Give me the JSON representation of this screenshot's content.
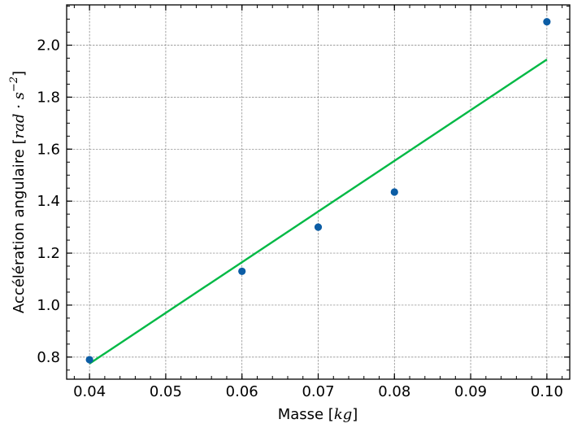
{
  "chart_data": {
    "type": "scatter",
    "xlabel_prefix": "Masse [",
    "xlabel_math": "kg",
    "xlabel_suffix": "]",
    "ylabel_prefix": "Accélération angulaire [",
    "ylabel_math": "rad · s",
    "ylabel_sup": "−2",
    "ylabel_suffix": "]",
    "xlim": [
      0.037,
      0.103
    ],
    "ylim": [
      0.715,
      2.155
    ],
    "xticks": [
      0.04,
      0.05,
      0.06,
      0.07,
      0.08,
      0.09,
      0.1
    ],
    "xtick_labels": [
      "0.04",
      "0.05",
      "0.06",
      "0.07",
      "0.08",
      "0.09",
      "0.10"
    ],
    "yticks": [
      0.8,
      1.0,
      1.2,
      1.4,
      1.6,
      1.8,
      2.0
    ],
    "ytick_labels": [
      "0.8",
      "1.0",
      "1.2",
      "1.4",
      "1.6",
      "1.8",
      "2.0"
    ],
    "grid": true,
    "series": [
      {
        "kind": "points",
        "color": "#0c5da5",
        "x": [
          0.04,
          0.06,
          0.07,
          0.08,
          0.1
        ],
        "y": [
          0.79,
          1.13,
          1.3,
          1.435,
          2.09
        ]
      },
      {
        "kind": "fit-line",
        "color": "#00b945",
        "x": [
          0.04,
          0.1
        ],
        "y": [
          0.775,
          1.945
        ]
      }
    ]
  }
}
